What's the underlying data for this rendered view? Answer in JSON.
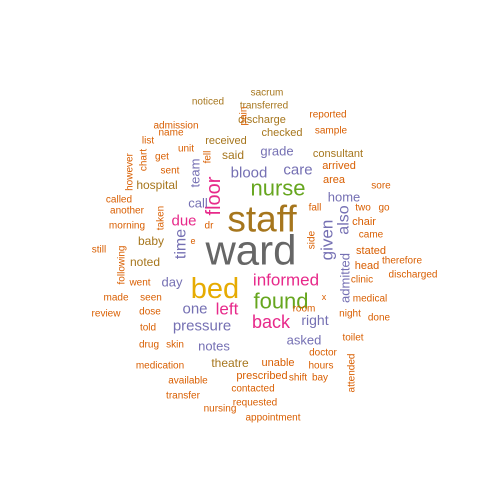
{
  "palette": {
    "orange": "#D95F02",
    "olive": "#A6761D",
    "gray": "#666666",
    "green": "#66A61E",
    "magenta": "#E7298A",
    "purple": "#7570B3",
    "gold": "#E6AB02"
  },
  "words": [
    {
      "text": "ward",
      "color": "gray",
      "weight": 10
    },
    {
      "text": "staff",
      "color": "olive",
      "weight": 8
    },
    {
      "text": "bed",
      "color": "gold",
      "weight": 6
    },
    {
      "text": "nurse",
      "color": "green",
      "weight": 5
    },
    {
      "text": "found",
      "color": "green",
      "weight": 5
    },
    {
      "text": "informed",
      "color": "magenta",
      "weight": 4
    },
    {
      "text": "floor",
      "color": "magenta",
      "weight": 4
    },
    {
      "text": "back",
      "color": "magenta",
      "weight": 4
    },
    {
      "text": "left",
      "color": "magenta",
      "weight": 4
    },
    {
      "text": "given",
      "color": "purple",
      "weight": 3
    },
    {
      "text": "also",
      "color": "purple",
      "weight": 3
    },
    {
      "text": "time",
      "color": "purple",
      "weight": 3
    },
    {
      "text": "pressure",
      "color": "purple",
      "weight": 3
    },
    {
      "text": "blood",
      "color": "purple",
      "weight": 3
    },
    {
      "text": "care",
      "color": "purple",
      "weight": 3
    },
    {
      "text": "one",
      "color": "purple",
      "weight": 3
    },
    {
      "text": "due",
      "color": "magenta",
      "weight": 3
    },
    {
      "text": "right",
      "color": "purple",
      "weight": 2
    },
    {
      "text": "admitted",
      "color": "purple",
      "weight": 2
    },
    {
      "text": "asked",
      "color": "purple",
      "weight": 2
    },
    {
      "text": "notes",
      "color": "purple",
      "weight": 2
    },
    {
      "text": "grade",
      "color": "purple",
      "weight": 2
    },
    {
      "text": "call",
      "color": "purple",
      "weight": 2
    },
    {
      "text": "day",
      "color": "purple",
      "weight": 2
    },
    {
      "text": "home",
      "color": "purple",
      "weight": 2
    },
    {
      "text": "team",
      "color": "purple",
      "weight": 2
    },
    {
      "text": "said",
      "color": "olive",
      "weight": 2
    },
    {
      "text": "baby",
      "color": "olive",
      "weight": 2
    },
    {
      "text": "noted",
      "color": "olive",
      "weight": 2
    },
    {
      "text": "hospital",
      "color": "olive",
      "weight": 2
    },
    {
      "text": "theatre",
      "color": "olive",
      "weight": 2
    },
    {
      "text": "consultant",
      "color": "olive",
      "weight": 2
    },
    {
      "text": "received",
      "color": "olive",
      "weight": 2
    },
    {
      "text": "checked",
      "color": "olive",
      "weight": 1
    },
    {
      "text": "discharge",
      "color": "olive",
      "weight": 1
    },
    {
      "text": "transferred",
      "color": "olive",
      "weight": 1
    },
    {
      "text": "sacrum",
      "color": "olive",
      "weight": 1
    },
    {
      "text": "noticed",
      "color": "olive",
      "weight": 1
    },
    {
      "text": "pain",
      "color": "orange",
      "weight": 1
    },
    {
      "text": "reported",
      "color": "orange",
      "weight": 1
    },
    {
      "text": "sample",
      "color": "orange",
      "weight": 1
    },
    {
      "text": "admission",
      "color": "orange",
      "weight": 1
    },
    {
      "text": "name",
      "color": "orange",
      "weight": 1
    },
    {
      "text": "list",
      "color": "orange",
      "weight": 1
    },
    {
      "text": "chart",
      "color": "orange",
      "weight": 1
    },
    {
      "text": "however",
      "color": "orange",
      "weight": 1
    },
    {
      "text": "get",
      "color": "orange",
      "weight": 1
    },
    {
      "text": "sent",
      "color": "orange",
      "weight": 1
    },
    {
      "text": "unit",
      "color": "orange",
      "weight": 1
    },
    {
      "text": "fell",
      "color": "orange",
      "weight": 1
    },
    {
      "text": "arrived",
      "color": "orange",
      "weight": 1
    },
    {
      "text": "area",
      "color": "orange",
      "weight": 1
    },
    {
      "text": "sore",
      "color": "orange",
      "weight": 1
    },
    {
      "text": "called",
      "color": "orange",
      "weight": 1
    },
    {
      "text": "another",
      "color": "orange",
      "weight": 1
    },
    {
      "text": "taken",
      "color": "orange",
      "weight": 1
    },
    {
      "text": "morning",
      "color": "orange",
      "weight": 1
    },
    {
      "text": "fall",
      "color": "orange",
      "weight": 1
    },
    {
      "text": "two",
      "color": "orange",
      "weight": 1
    },
    {
      "text": "go",
      "color": "orange",
      "weight": 1
    },
    {
      "text": "chair",
      "color": "orange",
      "weight": 1
    },
    {
      "text": "came",
      "color": "orange",
      "weight": 1
    },
    {
      "text": "therefore",
      "color": "orange",
      "weight": 1
    },
    {
      "text": "side",
      "color": "orange",
      "weight": 1
    },
    {
      "text": "stated",
      "color": "orange",
      "weight": 1
    },
    {
      "text": "still",
      "color": "orange",
      "weight": 1
    },
    {
      "text": "following",
      "color": "orange",
      "weight": 1
    },
    {
      "text": "went",
      "color": "orange",
      "weight": 1
    },
    {
      "text": "e",
      "color": "orange",
      "weight": 1
    },
    {
      "text": "dr",
      "color": "orange",
      "weight": 1
    },
    {
      "text": "clinic",
      "color": "orange",
      "weight": 1
    },
    {
      "text": "head",
      "color": "orange",
      "weight": 1
    },
    {
      "text": "discharged",
      "color": "orange",
      "weight": 1
    },
    {
      "text": "made",
      "color": "orange",
      "weight": 1
    },
    {
      "text": "seen",
      "color": "orange",
      "weight": 1
    },
    {
      "text": "x",
      "color": "orange",
      "weight": 1
    },
    {
      "text": "medical",
      "color": "orange",
      "weight": 1
    },
    {
      "text": "review",
      "color": "orange",
      "weight": 1
    },
    {
      "text": "dose",
      "color": "orange",
      "weight": 1
    },
    {
      "text": "room",
      "color": "orange",
      "weight": 1
    },
    {
      "text": "night",
      "color": "orange",
      "weight": 1
    },
    {
      "text": "done",
      "color": "orange",
      "weight": 1
    },
    {
      "text": "told",
      "color": "orange",
      "weight": 1
    },
    {
      "text": "drug",
      "color": "orange",
      "weight": 1
    },
    {
      "text": "skin",
      "color": "orange",
      "weight": 1
    },
    {
      "text": "toilet",
      "color": "orange",
      "weight": 1
    },
    {
      "text": "doctor",
      "color": "orange",
      "weight": 1
    },
    {
      "text": "hours",
      "color": "orange",
      "weight": 1
    },
    {
      "text": "unable",
      "color": "orange",
      "weight": 1
    },
    {
      "text": "prescribed",
      "color": "orange",
      "weight": 1
    },
    {
      "text": "medication",
      "color": "orange",
      "weight": 1
    },
    {
      "text": "shift",
      "color": "orange",
      "weight": 1
    },
    {
      "text": "bay",
      "color": "orange",
      "weight": 1
    },
    {
      "text": "available",
      "color": "orange",
      "weight": 1
    },
    {
      "text": "contacted",
      "color": "orange",
      "weight": 1
    },
    {
      "text": "attended",
      "color": "orange",
      "weight": 1
    },
    {
      "text": "transfer",
      "color": "orange",
      "weight": 1
    },
    {
      "text": "requested",
      "color": "orange",
      "weight": 1
    },
    {
      "text": "nursing",
      "color": "orange",
      "weight": 1
    },
    {
      "text": "appointment",
      "color": "orange",
      "weight": 1
    }
  ]
}
